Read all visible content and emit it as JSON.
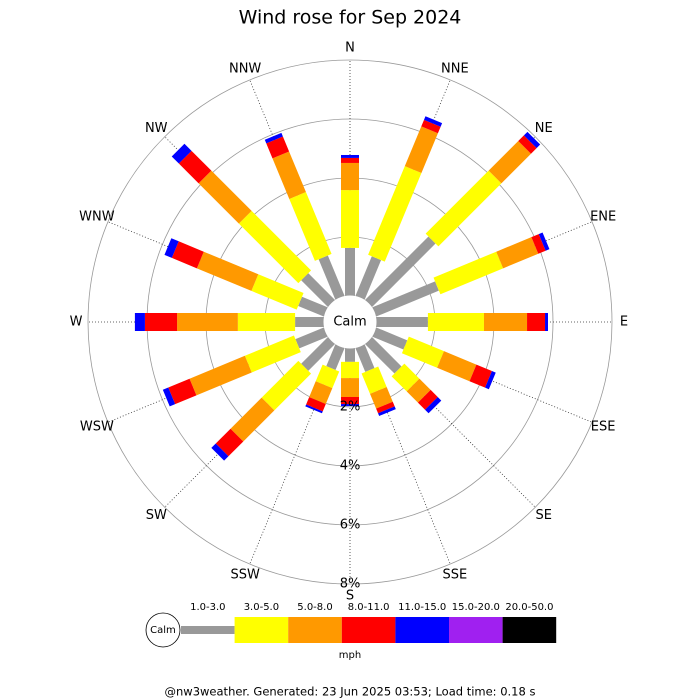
{
  "chart_data": {
    "type": "wind-rose",
    "title": "Wind rose for Sep 2024",
    "directions": [
      "N",
      "NNE",
      "NE",
      "ENE",
      "E",
      "ESE",
      "SE",
      "SSE",
      "S",
      "SSW",
      "SW",
      "WSW",
      "W",
      "WNW",
      "NW",
      "NNW"
    ],
    "series": [
      {
        "name": "1.0-3.0",
        "color": "#999999",
        "values": [
          1.63,
          1.46,
          3.05,
          2.31,
          1.76,
          1.15,
          1.42,
          0.88,
          0.47,
          0.81,
          1.29,
          1.05,
          0.98,
          0.95,
          1.29,
          1.49
        ]
      },
      {
        "name": "3.0-5.0",
        "color": "#ffff00",
        "values": [
          1.96,
          3.25,
          3.02,
          2.3,
          1.9,
          1.29,
          0.72,
          0.75,
          0.55,
          0.61,
          1.76,
          1.8,
          1.94,
          1.66,
          2.85,
          2.27
        ]
      },
      {
        "name": "5.0-8.0",
        "color": "#ff9900",
        "values": [
          0.92,
          1.46,
          1.42,
          1.29,
          1.46,
          1.19,
          0.54,
          0.54,
          0.64,
          0.58,
          1.49,
          2.03,
          2.06,
          2.0,
          1.93,
          1.49
        ]
      },
      {
        "name": "8.0-11.0",
        "color": "#ff0000",
        "values": [
          0.17,
          0.24,
          0.27,
          0.27,
          0.61,
          0.57,
          0.34,
          0.17,
          0.24,
          0.27,
          0.71,
          0.78,
          1.09,
          0.92,
          0.95,
          0.55
        ]
      },
      {
        "name": "11.0-15.0",
        "color": "#0000ff",
        "values": [
          0.1,
          0.13,
          0.17,
          0.14,
          0.1,
          0.14,
          0.17,
          0.1,
          0.07,
          0.07,
          0.21,
          0.2,
          0.34,
          0.27,
          0.34,
          0.13
        ]
      },
      {
        "name": "15.0-20.0",
        "color": "#a020f0",
        "values": [
          0,
          0,
          0,
          0,
          0,
          0,
          0,
          0,
          0,
          0,
          0,
          0,
          0,
          0,
          0,
          0
        ]
      },
      {
        "name": "20.0-50.0",
        "color": "#000000",
        "values": [
          0,
          0,
          0,
          0,
          0,
          0,
          0,
          0,
          0,
          0,
          0,
          0,
          0,
          0,
          0,
          0
        ]
      }
    ],
    "rlim": [
      0,
      8
    ],
    "rticks": [
      {
        "value": 2,
        "label": "2%"
      },
      {
        "value": 4,
        "label": "4%"
      },
      {
        "value": 6,
        "label": "6%"
      },
      {
        "value": 8,
        "label": "8%"
      }
    ],
    "calm_label": "Calm",
    "legend_calm_label": "Calm",
    "unit": "mph"
  },
  "footer": "@nw3weather. Generated: 23 Jun 2025 03:53; Load time: 0.18 s"
}
